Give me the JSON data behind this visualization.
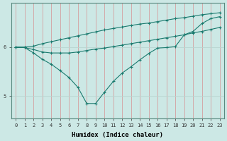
{
  "xlabel": "Humidex (Indice chaleur)",
  "background_color": "#cce8e5",
  "line_color": "#1a7a6e",
  "grid_color": "#b8d4d0",
  "x_values": [
    0,
    1,
    2,
    3,
    4,
    5,
    6,
    7,
    8,
    9,
    10,
    11,
    12,
    13,
    14,
    15,
    16,
    17,
    18,
    19,
    20,
    21,
    22,
    23
  ],
  "line1_y": [
    6.0,
    6.0,
    6.02,
    6.07,
    6.11,
    6.15,
    6.19,
    6.23,
    6.27,
    6.31,
    6.35,
    6.38,
    6.41,
    6.44,
    6.47,
    6.49,
    6.52,
    6.55,
    6.58,
    6.6,
    6.63,
    6.66,
    6.68,
    6.7
  ],
  "line2_y": [
    5.99,
    5.99,
    5.95,
    5.9,
    5.88,
    5.88,
    5.88,
    5.9,
    5.93,
    5.96,
    5.98,
    6.01,
    6.04,
    6.07,
    6.1,
    6.13,
    6.16,
    6.19,
    6.22,
    6.25,
    6.29,
    6.32,
    6.36,
    6.4
  ],
  "line3_y": [
    6.0,
    5.99,
    5.88,
    5.75,
    5.65,
    5.52,
    5.38,
    5.18,
    4.85,
    4.85,
    5.08,
    5.3,
    5.47,
    5.6,
    5.74,
    5.87,
    5.98,
    5.99,
    6.01,
    6.25,
    6.32,
    6.48,
    6.58,
    6.62
  ],
  "yticks": [
    5,
    6
  ],
  "ylim": [
    4.55,
    6.9
  ],
  "xlim": [
    -0.5,
    23.5
  ],
  "xtick_labels": [
    "0",
    "1",
    "2",
    "3",
    "4",
    "5",
    "6",
    "7",
    "8",
    "9",
    "10",
    "11",
    "12",
    "13",
    "14",
    "15",
    "16",
    "17",
    "18",
    "19",
    "20",
    "21",
    "22",
    "23"
  ]
}
